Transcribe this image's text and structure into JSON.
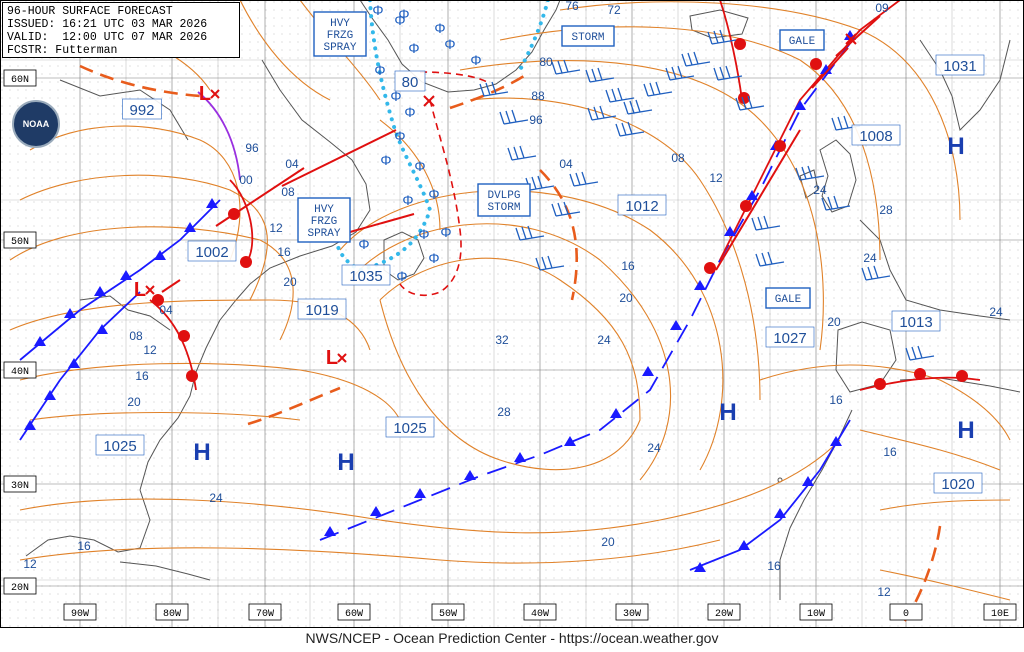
{
  "header": {
    "title": "96-HOUR SURFACE FORECAST",
    "issued": "ISSUED: 16:21 UTC 03 MAR 2026",
    "valid": "VALID:  12:00 UTC 07 MAR 2026",
    "forecaster": "FCSTR: Futterman"
  },
  "logo_text": "NOAA",
  "footer": "NWS/NCEP - Ocean Prediction Center - https://ocean.weather.gov",
  "colors": {
    "isobar": "#e0822a",
    "front_cold": "#1a1aff",
    "front_warm": "#e01010",
    "wind": "#2060c0",
    "spray": "#33b8ea",
    "grid": "#7a7a7a",
    "land": "#606060"
  },
  "lat_labels": [
    "60N",
    "50N",
    "40N",
    "30N",
    "20N"
  ],
  "lon_labels": [
    "90W",
    "80W",
    "70W",
    "60W",
    "50W",
    "40W",
    "30W",
    "20W",
    "10W",
    "0",
    "10E"
  ],
  "pressure_centers": [
    {
      "type": "L",
      "value": "992"
    },
    {
      "type": "L",
      "value": "1002"
    },
    {
      "type": "L",
      "value": "1019"
    },
    {
      "type": "L",
      "value": "1035"
    },
    {
      "type": "H",
      "value": "1025"
    },
    {
      "type": "H",
      "value": "1025"
    },
    {
      "type": "L",
      "value": "1012"
    },
    {
      "type": "H",
      "value": "1027"
    },
    {
      "type": "H",
      "value": "1031"
    },
    {
      "type": "L",
      "value": "1008"
    },
    {
      "type": "L",
      "value": "1013"
    },
    {
      "type": "H",
      "value": "1020"
    },
    {
      "type": "L",
      "value": "80"
    }
  ],
  "isobar_labels": [
    "96",
    "00",
    "04",
    "08",
    "12",
    "16",
    "20",
    "04",
    "08",
    "12",
    "16",
    "20",
    "24",
    "28",
    "32",
    "76",
    "72",
    "80",
    "88",
    "96",
    "04",
    "08",
    "12",
    "16",
    "20",
    "24",
    "24",
    "28",
    "24",
    "24",
    "20",
    "16",
    "16",
    "12",
    "24",
    "20",
    "16",
    "12",
    "16",
    "09"
  ],
  "warnings": [
    {
      "lines": [
        "HVY",
        "FRZG",
        "SPRAY"
      ]
    },
    {
      "lines": [
        "HVY",
        "FRZG",
        "SPRAY"
      ]
    },
    {
      "lines": [
        "STORM"
      ]
    },
    {
      "lines": [
        "GALE"
      ]
    },
    {
      "lines": [
        "DVLPG",
        "STORM"
      ]
    },
    {
      "lines": [
        "GALE"
      ]
    }
  ]
}
